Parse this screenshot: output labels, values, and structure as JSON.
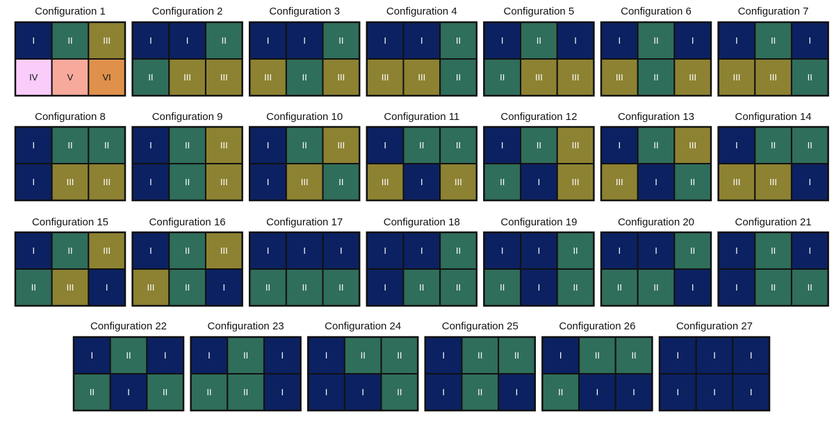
{
  "palette": {
    "I": {
      "fill": "#0c2161",
      "text": "#ffffff"
    },
    "II": {
      "fill": "#2f6e5b",
      "text": "#ffffff"
    },
    "III": {
      "fill": "#8d8232",
      "text": "#ffffff"
    },
    "IV": {
      "fill": "#f9ccf9",
      "text": "#111111"
    },
    "V": {
      "fill": "#f7aa9c",
      "text": "#111111"
    },
    "VI": {
      "fill": "#df914c",
      "text": "#111111"
    }
  },
  "configurations": [
    {
      "title": "Configuration 1",
      "cells": [
        [
          "I",
          "II",
          "III"
        ],
        [
          "IV",
          "V",
          "VI"
        ]
      ]
    },
    {
      "title": "Configuration 2",
      "cells": [
        [
          "I",
          "I",
          "II"
        ],
        [
          "II",
          "III",
          "III"
        ]
      ]
    },
    {
      "title": "Configuration 3",
      "cells": [
        [
          "I",
          "I",
          "II"
        ],
        [
          "III",
          "II",
          "III"
        ]
      ]
    },
    {
      "title": "Configuration 4",
      "cells": [
        [
          "I",
          "I",
          "II"
        ],
        [
          "III",
          "III",
          "II"
        ]
      ]
    },
    {
      "title": "Configuration 5",
      "cells": [
        [
          "I",
          "II",
          "I"
        ],
        [
          "II",
          "III",
          "III"
        ]
      ]
    },
    {
      "title": "Configuration 6",
      "cells": [
        [
          "I",
          "II",
          "I"
        ],
        [
          "III",
          "II",
          "III"
        ]
      ]
    },
    {
      "title": "Configuration 7",
      "cells": [
        [
          "I",
          "II",
          "I"
        ],
        [
          "III",
          "III",
          "II"
        ]
      ]
    },
    {
      "title": "Configuration 8",
      "cells": [
        [
          "I",
          "II",
          "II"
        ],
        [
          "I",
          "III",
          "III"
        ]
      ]
    },
    {
      "title": "Configuration 9",
      "cells": [
        [
          "I",
          "II",
          "III"
        ],
        [
          "I",
          "II",
          "III"
        ]
      ]
    },
    {
      "title": "Configuration 10",
      "cells": [
        [
          "I",
          "II",
          "III"
        ],
        [
          "I",
          "III",
          "II"
        ]
      ]
    },
    {
      "title": "Configuration 11",
      "cells": [
        [
          "I",
          "II",
          "II"
        ],
        [
          "III",
          "I",
          "III"
        ]
      ]
    },
    {
      "title": "Configuration 12",
      "cells": [
        [
          "I",
          "II",
          "III"
        ],
        [
          "II",
          "I",
          "III"
        ]
      ]
    },
    {
      "title": "Configuration 13",
      "cells": [
        [
          "I",
          "II",
          "III"
        ],
        [
          "III",
          "I",
          "II"
        ]
      ]
    },
    {
      "title": "Configuration 14",
      "cells": [
        [
          "I",
          "II",
          "II"
        ],
        [
          "III",
          "III",
          "I"
        ]
      ]
    },
    {
      "title": "Configuration 15",
      "cells": [
        [
          "I",
          "II",
          "III"
        ],
        [
          "II",
          "III",
          "I"
        ]
      ]
    },
    {
      "title": "Configuration 16",
      "cells": [
        [
          "I",
          "II",
          "III"
        ],
        [
          "III",
          "II",
          "I"
        ]
      ]
    },
    {
      "title": "Configuration 17",
      "cells": [
        [
          "I",
          "I",
          "I"
        ],
        [
          "II",
          "II",
          "II"
        ]
      ]
    },
    {
      "title": "Configuration 18",
      "cells": [
        [
          "I",
          "I",
          "II"
        ],
        [
          "I",
          "II",
          "II"
        ]
      ]
    },
    {
      "title": "Configuration 19",
      "cells": [
        [
          "I",
          "I",
          "II"
        ],
        [
          "II",
          "I",
          "II"
        ]
      ]
    },
    {
      "title": "Configuration 20",
      "cells": [
        [
          "I",
          "I",
          "II"
        ],
        [
          "II",
          "II",
          "I"
        ]
      ]
    },
    {
      "title": "Configuration 21",
      "cells": [
        [
          "I",
          "II",
          "I"
        ],
        [
          "I",
          "II",
          "II"
        ]
      ]
    },
    {
      "title": "Configuration 22",
      "cells": [
        [
          "I",
          "II",
          "I"
        ],
        [
          "II",
          "I",
          "II"
        ]
      ]
    },
    {
      "title": "Configuration 23",
      "cells": [
        [
          "I",
          "II",
          "I"
        ],
        [
          "II",
          "II",
          "I"
        ]
      ]
    },
    {
      "title": "Configuration 24",
      "cells": [
        [
          "I",
          "II",
          "II"
        ],
        [
          "I",
          "I",
          "II"
        ]
      ]
    },
    {
      "title": "Configuration 25",
      "cells": [
        [
          "I",
          "II",
          "II"
        ],
        [
          "I",
          "II",
          "I"
        ]
      ]
    },
    {
      "title": "Configuration 26",
      "cells": [
        [
          "I",
          "II",
          "II"
        ],
        [
          "II",
          "I",
          "I"
        ]
      ]
    },
    {
      "title": "Configuration 27",
      "cells": [
        [
          "I",
          "I",
          "I"
        ],
        [
          "I",
          "I",
          "I"
        ]
      ]
    }
  ]
}
